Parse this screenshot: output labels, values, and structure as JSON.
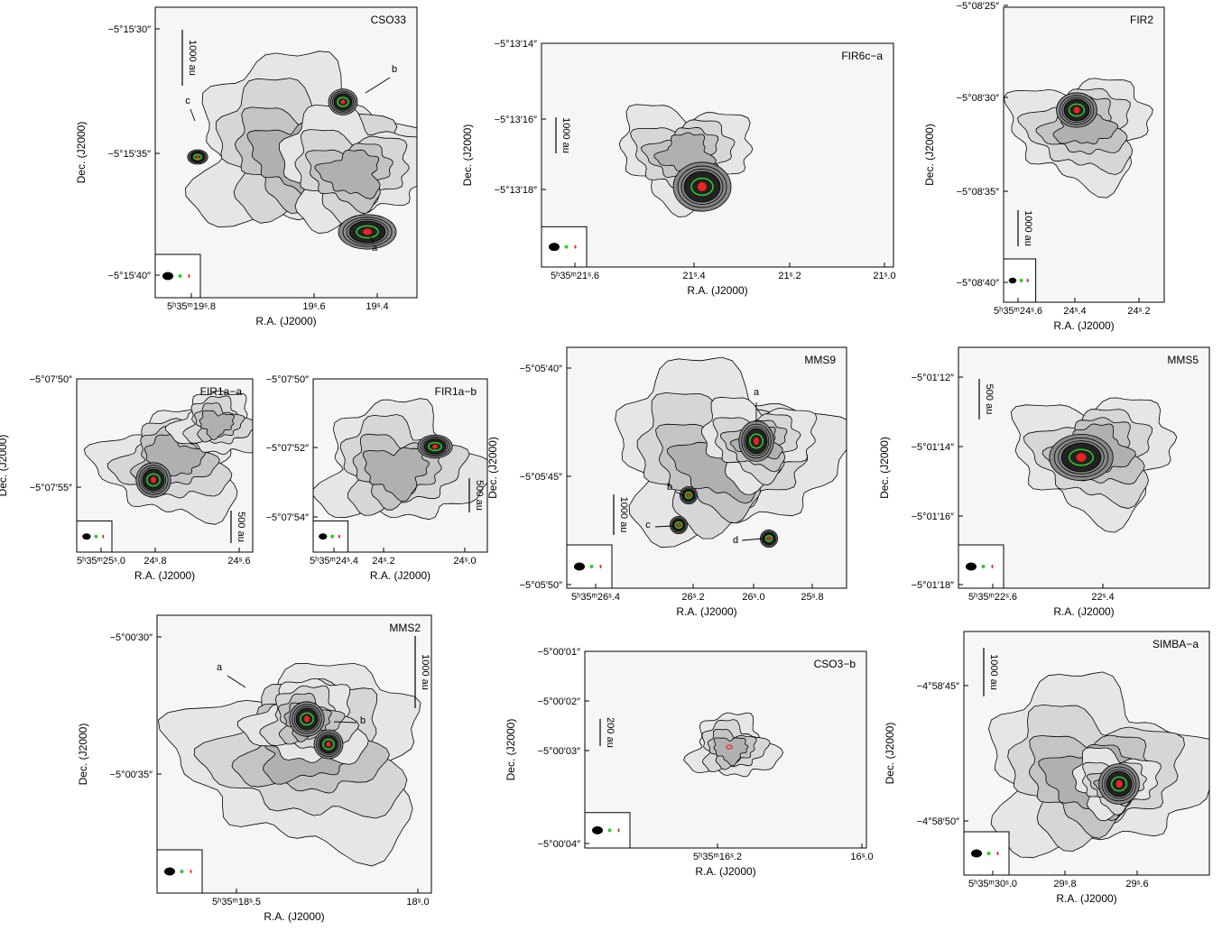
{
  "panels": [
    {
      "title": "CSO33",
      "xlabel": "R.A. (J2000)",
      "ylabel": "Dec. (J2000)",
      "xticks": [
        "5ʰ35ᵐ19ˢ.8",
        "19ˢ.6",
        "19ˢ.4"
      ],
      "yticks": [
        "−5°15′30″",
        "−5°15′35″",
        "−5°15′40″"
      ],
      "scale": "1000 au",
      "labels": [
        "b",
        "c",
        "a"
      ]
    },
    {
      "title": "FIR6c−a",
      "xlabel": "R.A. (J2000)",
      "ylabel": "Dec. (J2000)",
      "xticks": [
        "5ʰ35ᵐ21ˢ.6",
        "21ˢ.4",
        "21ˢ.2",
        "21ˢ.0"
      ],
      "yticks": [
        "−5°13′14″",
        "−5°13′16″",
        "−5°13′18″"
      ],
      "scale": "1000 au",
      "labels": []
    },
    {
      "title": "FIR2",
      "xlabel": "R.A. (J2000)",
      "ylabel": "Dec. (J2000)",
      "xticks": [
        "5ʰ35ᵐ24ˢ.6",
        "24ˢ.4",
        "24ˢ.2"
      ],
      "yticks": [
        "−5°08′25″",
        "−5°08′30″",
        "−5°08′35″",
        "−5°08′40″"
      ],
      "scale": "1000 au",
      "labels": []
    },
    {
      "title": "FIR1a−a",
      "xlabel": "R.A. (J2000)",
      "ylabel": "Dec. (J2000)",
      "xticks": [
        "5ʰ35ᵐ25ˢ.0",
        "24ˢ.8",
        "24ˢ.6"
      ],
      "yticks": [
        "−5°07′50″",
        "−5°07′55″"
      ],
      "scale": "500 au",
      "labels": []
    },
    {
      "title": "FIR1a−b",
      "xlabel": "R.A. (J2000)",
      "ylabel": "",
      "xticks": [
        "5ʰ35ᵐ24ˢ.4",
        "24ˢ.2",
        "24ˢ.0"
      ],
      "yticks": [
        "−5°07′50″",
        "−5°07′52″",
        "−5°07′54″"
      ],
      "scale": "500 au",
      "labels": []
    },
    {
      "title": "MMS9",
      "xlabel": "R.A. (J2000)",
      "ylabel": "Dec. (J2000)",
      "xticks": [
        "5ʰ35ᵐ26ˢ.4",
        "26ˢ.2",
        "26ˢ.0",
        "25ˢ.8"
      ],
      "yticks": [
        "−5°05′40″",
        "−5°05′45″",
        "−5°05′50″"
      ],
      "scale": "1000 au",
      "labels": [
        "a",
        "b",
        "c",
        "d"
      ]
    },
    {
      "title": "MMS5",
      "xlabel": "R.A. (J2000)",
      "ylabel": "Dec. (J2000)",
      "xticks": [
        "5ʰ35ᵐ22ˢ.6",
        "22ˢ.4"
      ],
      "yticks": [
        "−5°01′12″",
        "−5°01′14″",
        "−5°01′16″",
        "−5°01′18″"
      ],
      "scale": "500 au",
      "labels": []
    },
    {
      "title": "MMS2",
      "xlabel": "R.A. (J2000)",
      "ylabel": "Dec. (J2000)",
      "xticks": [
        "5ʰ35ᵐ18ˢ.5",
        "18ˢ.0"
      ],
      "yticks": [
        "−5°00′30″",
        "−5°00′35″"
      ],
      "scale": "1000 au",
      "labels": [
        "a",
        "b"
      ]
    },
    {
      "title": "CSO3−b",
      "xlabel": "R.A. (J2000)",
      "ylabel": "Dec. (J2000)",
      "xticks": [
        "5ʰ35ᵐ16ˢ.2",
        "16ˢ.0"
      ],
      "yticks": [
        "−5°00′01″",
        "−5°00′02″",
        "−5°00′03″",
        "−5°00′04″"
      ],
      "scale": "200 au",
      "labels": []
    },
    {
      "title": "SIMBA−a",
      "xlabel": "R.A. (J2000)",
      "ylabel": "Dec. (J2000)",
      "xticks": [
        "5ʰ35ᵐ30ˢ.0",
        "29ˢ.8",
        "29ˢ.6"
      ],
      "yticks": [
        "−4°58′45″",
        "−4°58′50″"
      ],
      "scale": "1000 au",
      "labels": []
    }
  ]
}
